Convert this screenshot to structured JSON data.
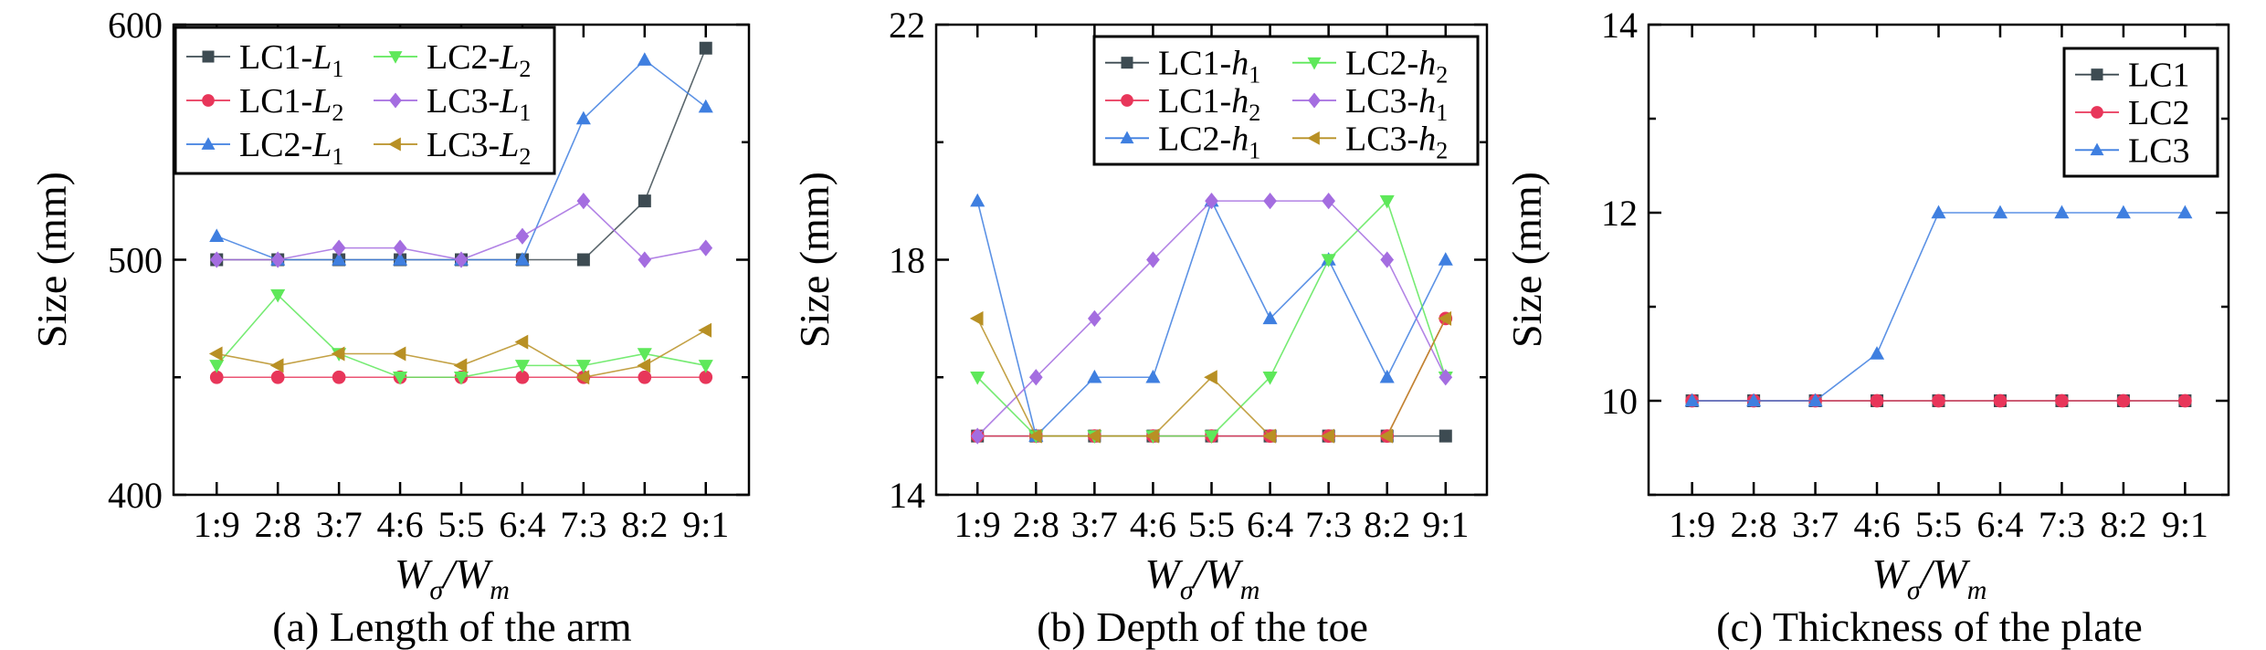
{
  "chart_data": [
    {
      "type": "line",
      "caption": "(a) Length of the arm",
      "xlabel_main": "W",
      "xlabel_sub1": "σ",
      "xlabel_slash": "/W",
      "xlabel_sub2": "m",
      "ylabel": "Size (mm)",
      "categories": [
        "1:9",
        "2:8",
        "3:7",
        "4:6",
        "5:5",
        "6:4",
        "7:3",
        "8:2",
        "9:1"
      ],
      "ylim": [
        400,
        600
      ],
      "yticks": [
        400,
        500,
        600
      ],
      "legend_cols": 2,
      "series": [
        {
          "name": "LC1-",
          "sub": "L",
          "subnum": "1",
          "color": "#3d4b52",
          "marker": "square",
          "values": [
            500,
            500,
            500,
            500,
            500,
            500,
            500,
            525,
            590
          ]
        },
        {
          "name": "LC1-",
          "sub": "L",
          "subnum": "2",
          "color": "#e8365a",
          "marker": "circle",
          "values": [
            450,
            450,
            450,
            450,
            450,
            450,
            450,
            450,
            450
          ]
        },
        {
          "name": "LC2-",
          "sub": "L",
          "subnum": "1",
          "color": "#3f7fe0",
          "marker": "triangle-up",
          "values": [
            510,
            500,
            500,
            500,
            500,
            500,
            560,
            585,
            565
          ]
        },
        {
          "name": "LC2-",
          "sub": "L",
          "subnum": "2",
          "color": "#5ee85a",
          "marker": "triangle-down",
          "values": [
            455,
            485,
            460,
            450,
            450,
            455,
            455,
            460,
            455
          ]
        },
        {
          "name": "LC3-",
          "sub": "L",
          "subnum": "1",
          "color": "#a46de0",
          "marker": "diamond",
          "values": [
            500,
            500,
            505,
            505,
            500,
            510,
            525,
            500,
            505
          ]
        },
        {
          "name": "LC3-",
          "sub": "L",
          "subnum": "2",
          "color": "#b89024",
          "marker": "triangle-left",
          "values": [
            460,
            455,
            460,
            460,
            455,
            465,
            450,
            455,
            470
          ]
        }
      ]
    },
    {
      "type": "line",
      "caption": "(b) Depth of the toe",
      "xlabel_main": "W",
      "xlabel_sub1": "σ",
      "xlabel_slash": "/W",
      "xlabel_sub2": "m",
      "ylabel": "Size (mm)",
      "categories": [
        "1:9",
        "2:8",
        "3:7",
        "4:6",
        "5:5",
        "6:4",
        "7:3",
        "8:2",
        "9:1"
      ],
      "ylim": [
        14,
        22
      ],
      "yticks": [
        14,
        18,
        22
      ],
      "legend_cols": 2,
      "series": [
        {
          "name": "LC1-",
          "sub": "h",
          "subnum": "1",
          "color": "#3d4b52",
          "marker": "square",
          "values": [
            15,
            15,
            15,
            15,
            15,
            15,
            15,
            15,
            15
          ]
        },
        {
          "name": "LC1-",
          "sub": "h",
          "subnum": "2",
          "color": "#e8365a",
          "marker": "circle",
          "values": [
            15,
            15,
            15,
            15,
            15,
            15,
            15,
            15,
            17
          ]
        },
        {
          "name": "LC2-",
          "sub": "h",
          "subnum": "1",
          "color": "#3f7fe0",
          "marker": "triangle-up",
          "values": [
            19,
            15,
            16,
            16,
            19,
            17,
            18,
            16,
            18
          ]
        },
        {
          "name": "LC2-",
          "sub": "h",
          "subnum": "2",
          "color": "#5ee85a",
          "marker": "triangle-down",
          "values": [
            16,
            15,
            15,
            15,
            15,
            16,
            18,
            19,
            16
          ]
        },
        {
          "name": "LC3-",
          "sub": "h",
          "subnum": "1",
          "color": "#a46de0",
          "marker": "diamond",
          "values": [
            15,
            16,
            17,
            18,
            19,
            19,
            19,
            18,
            16
          ]
        },
        {
          "name": "LC3-",
          "sub": "h",
          "subnum": "2",
          "color": "#b89024",
          "marker": "triangle-left",
          "values": [
            17,
            15,
            15,
            15,
            16,
            15,
            15,
            15,
            17
          ]
        }
      ]
    },
    {
      "type": "line",
      "caption": "(c) Thickness of the plate",
      "xlabel_main": "W",
      "xlabel_sub1": "σ",
      "xlabel_slash": "/W",
      "xlabel_sub2": "m",
      "ylabel": "Size (mm)",
      "categories": [
        "1:9",
        "2:8",
        "3:7",
        "4:6",
        "5:5",
        "6:4",
        "7:3",
        "8:2",
        "9:1"
      ],
      "ylim": [
        9,
        14
      ],
      "yticks": [
        10,
        12,
        14
      ],
      "legend_cols": 1,
      "series": [
        {
          "name": "LC1",
          "sub": "",
          "subnum": "",
          "color": "#3d4b52",
          "marker": "square",
          "values": [
            10,
            10,
            10,
            10,
            10,
            10,
            10,
            10,
            10
          ]
        },
        {
          "name": "LC2",
          "sub": "",
          "subnum": "",
          "color": "#e8365a",
          "marker": "circle",
          "values": [
            10,
            10,
            10,
            10,
            10,
            10,
            10,
            10,
            10
          ]
        },
        {
          "name": "LC3",
          "sub": "",
          "subnum": "",
          "color": "#3f7fe0",
          "marker": "triangle-up",
          "values": [
            10,
            10,
            10,
            10.5,
            12,
            12,
            12,
            12,
            12
          ]
        }
      ]
    }
  ]
}
